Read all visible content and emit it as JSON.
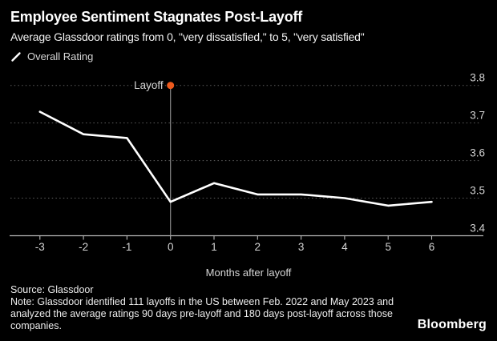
{
  "header": {
    "title": "Employee Sentiment Stagnates Post-Layoff",
    "subtitle": "Average Glassdoor ratings from 0, \"very dissatisfied,\" to 5, \"very satisfied\""
  },
  "legend": {
    "items": [
      {
        "label": "Overall Rating",
        "swatch": "white-line"
      }
    ]
  },
  "chart_data": {
    "type": "line",
    "title": "Employee Sentiment Stagnates Post-Layoff",
    "x": [
      -3,
      -2,
      -1,
      0,
      1,
      2,
      3,
      4,
      5,
      6
    ],
    "series": [
      {
        "name": "Overall Rating",
        "color": "#ffffff",
        "values": [
          3.73,
          3.67,
          3.66,
          3.49,
          3.54,
          3.51,
          3.51,
          3.5,
          3.48,
          3.49
        ]
      }
    ],
    "xlabel": "Months after layoff",
    "ylabel": "",
    "ylim": [
      3.4,
      3.8
    ],
    "yticks": [
      3.4,
      3.5,
      3.6,
      3.7,
      3.8
    ],
    "grid": "dotted-horizontal",
    "legend_position": "top-left",
    "annotation": {
      "label": "Layoff",
      "x": 0,
      "marker_y": 3.8
    }
  },
  "footer": {
    "source": "Source: Glassdoor",
    "note": "Note: Glassdoor identified 111 layoffs in the US between Feb. 2022 and May 2023 and analyzed the average ratings 90 days pre-layoff and 180 days post-layoff across those companies.",
    "brand": "Bloomberg"
  },
  "colors": {
    "background": "#000000",
    "line": "#ffffff",
    "accent": "#ee5a1d",
    "grid": "#5e5e5e",
    "axis": "#b8b8b8",
    "text": "#d4d4d4",
    "annotation_text": "#e8e8e8",
    "marker_stem": "#8a8a8a"
  }
}
